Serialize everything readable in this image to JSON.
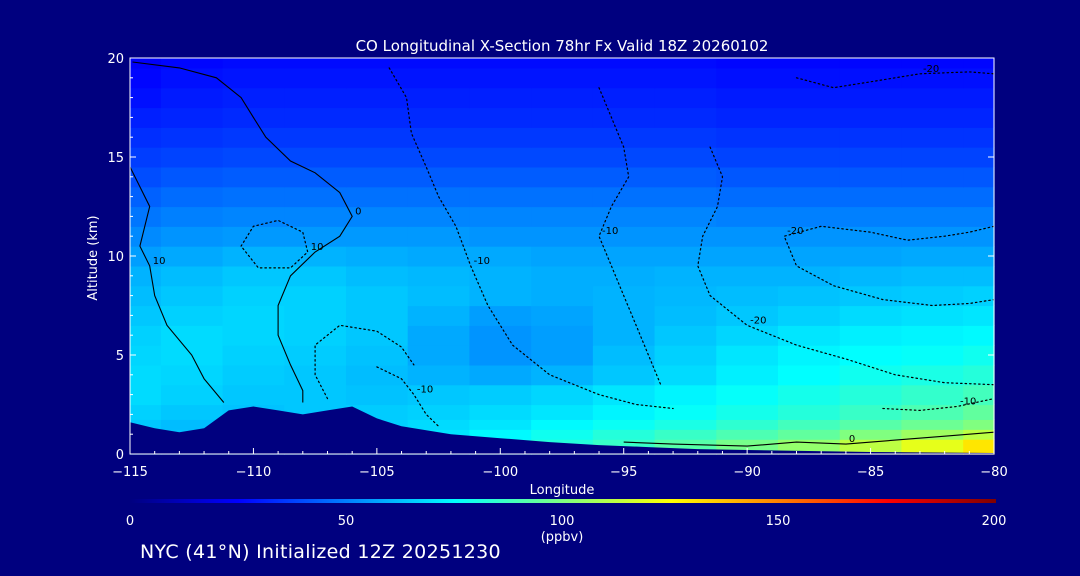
{
  "chart_data": {
    "type": "heatmap",
    "title": "CO Longitudinal X-Section 78hr  Fx Valid 18Z 20260102",
    "xlabel": "Longitude",
    "ylabel": "Altitude (km)",
    "xlim": [
      -115,
      -80
    ],
    "ylim": [
      0,
      20
    ],
    "x_ticks": [
      -115,
      -110,
      -105,
      -100,
      -95,
      -90,
      -85,
      -80
    ],
    "x_tick_labels": [
      "−115",
      "−110",
      "−105",
      "−100",
      "−95",
      "−90",
      "−85",
      "−80"
    ],
    "y_ticks": [
      0,
      5,
      10,
      15,
      20
    ],
    "y_tick_labels": [
      "0",
      "5",
      "10",
      "15",
      "20"
    ],
    "colorbar": {
      "min": 0,
      "max": 200,
      "ticks": [
        0,
        50,
        100,
        150,
        200
      ],
      "tick_labels": [
        "0",
        "50",
        "100",
        "150",
        "200"
      ],
      "unit_label": "(ppbv)",
      "colors": [
        "#00007f",
        "#0000ff",
        "#0080ff",
        "#00ffff",
        "#80ff80",
        "#ffff00",
        "#ff8000",
        "#ff0000",
        "#7f0000"
      ]
    },
    "altitude_levels_km": [
      0.5,
      1,
      1.5,
      2,
      3,
      4,
      5,
      6,
      7,
      8,
      9,
      10,
      11,
      12,
      13,
      14,
      15,
      16,
      17,
      18,
      19,
      20
    ],
    "longitudes": [
      -115,
      -112.5,
      -110,
      -107.5,
      -105,
      -102.5,
      -100,
      -97.5,
      -95,
      -92.5,
      -90,
      -87.5,
      -85,
      -82.5,
      -80
    ],
    "co_ppbv_rows": [
      [
        62,
        64,
        66,
        68,
        70,
        74,
        78,
        82,
        86,
        92,
        98,
        104,
        112,
        120,
        130
      ],
      [
        62,
        63,
        65,
        66,
        68,
        70,
        74,
        78,
        82,
        86,
        90,
        94,
        100,
        106,
        112
      ],
      [
        64,
        62,
        64,
        65,
        66,
        68,
        70,
        74,
        77,
        80,
        84,
        88,
        92,
        96,
        100
      ],
      [
        66,
        64,
        63,
        64,
        65,
        66,
        68,
        70,
        73,
        76,
        79,
        82,
        86,
        90,
        94
      ],
      [
        68,
        66,
        64,
        64,
        63,
        64,
        65,
        67,
        70,
        73,
        76,
        79,
        82,
        85,
        88
      ],
      [
        68,
        67,
        65,
        64,
        62,
        60,
        58,
        60,
        64,
        68,
        72,
        75,
        78,
        80,
        82
      ],
      [
        67,
        68,
        66,
        65,
        63,
        58,
        54,
        56,
        62,
        66,
        70,
        73,
        75,
        76,
        78
      ],
      [
        66,
        68,
        67,
        66,
        64,
        58,
        54,
        56,
        60,
        64,
        67,
        70,
        72,
        73,
        74
      ],
      [
        64,
        66,
        67,
        66,
        64,
        60,
        56,
        57,
        60,
        62,
        64,
        66,
        68,
        69,
        70
      ],
      [
        62,
        64,
        66,
        66,
        64,
        62,
        60,
        59,
        60,
        61,
        62,
        63,
        64,
        65,
        66
      ],
      [
        60,
        62,
        64,
        64,
        62,
        61,
        60,
        59,
        59,
        60,
        60,
        60,
        61,
        62,
        62
      ],
      [
        56,
        58,
        60,
        60,
        59,
        58,
        58,
        57,
        57,
        57,
        57,
        57,
        57,
        58,
        58
      ],
      [
        52,
        54,
        55,
        55,
        55,
        55,
        54,
        54,
        54,
        54,
        54,
        54,
        54,
        54,
        54
      ],
      [
        48,
        50,
        51,
        51,
        51,
        51,
        51,
        51,
        51,
        51,
        50,
        50,
        50,
        50,
        50
      ],
      [
        44,
        46,
        47,
        47,
        47,
        47,
        47,
        47,
        47,
        47,
        46,
        46,
        46,
        46,
        46
      ],
      [
        40,
        42,
        43,
        43,
        43,
        43,
        43,
        43,
        43,
        43,
        42,
        42,
        42,
        42,
        42
      ],
      [
        37,
        38,
        39,
        39,
        39,
        39,
        39,
        39,
        39,
        39,
        38,
        38,
        38,
        38,
        38
      ],
      [
        34,
        35,
        36,
        36,
        36,
        36,
        36,
        36,
        36,
        36,
        35,
        35,
        35,
        35,
        35
      ],
      [
        31,
        32,
        33,
        33,
        33,
        33,
        33,
        33,
        33,
        33,
        32,
        32,
        32,
        32,
        32
      ],
      [
        28,
        30,
        31,
        31,
        31,
        31,
        31,
        31,
        31,
        31,
        30,
        30,
        30,
        30,
        30
      ],
      [
        26,
        28,
        29,
        29,
        29,
        29,
        29,
        29,
        29,
        29,
        28,
        28,
        28,
        28,
        28
      ],
      [
        24,
        26,
        27,
        27,
        27,
        27,
        27,
        27,
        27,
        27,
        26,
        26,
        26,
        26,
        26
      ]
    ],
    "terrain_km": [
      [
        -115,
        1.6
      ],
      [
        -114,
        1.3
      ],
      [
        -113,
        1.1
      ],
      [
        -112,
        1.3
      ],
      [
        -111,
        2.2
      ],
      [
        -110,
        2.4
      ],
      [
        -109,
        2.2
      ],
      [
        -108,
        2.0
      ],
      [
        -107,
        2.2
      ],
      [
        -106,
        2.4
      ],
      [
        -105,
        1.8
      ],
      [
        -104,
        1.4
      ],
      [
        -102,
        1.0
      ],
      [
        -100,
        0.8
      ],
      [
        -98,
        0.6
      ],
      [
        -96,
        0.45
      ],
      [
        -94,
        0.35
      ],
      [
        -92,
        0.25
      ],
      [
        -90,
        0.2
      ],
      [
        -85,
        0.1
      ],
      [
        -80,
        0.05
      ]
    ],
    "contours": [
      {
        "style": "solid",
        "label": "0",
        "points": [
          [
            -114.9,
            19.8
          ],
          [
            -113,
            19.5
          ],
          [
            -111.5,
            19
          ],
          [
            -110.5,
            18
          ],
          [
            -110,
            17
          ],
          [
            -109.5,
            16
          ],
          [
            -108.5,
            14.8
          ],
          [
            -107.5,
            14.2
          ],
          [
            -106.5,
            13.2
          ],
          [
            -106,
            12
          ],
          [
            -106.5,
            11
          ],
          [
            -107.5,
            10.2
          ],
          [
            -108.5,
            9
          ],
          [
            -109,
            7.5
          ],
          [
            -109,
            6
          ],
          [
            -108.5,
            4.5
          ],
          [
            -108,
            3.2
          ],
          [
            -108,
            2.6
          ]
        ]
      },
      {
        "style": "solid",
        "label": "10",
        "points": [
          [
            -115,
            14.5
          ],
          [
            -114.6,
            13.5
          ],
          [
            -114.2,
            12.5
          ],
          [
            -114.4,
            11.5
          ],
          [
            -114.6,
            10.5
          ],
          [
            -114.2,
            9.5
          ],
          [
            -114,
            8
          ],
          [
            -113.5,
            6.5
          ],
          [
            -112.5,
            5
          ],
          [
            -112,
            3.8
          ],
          [
            -111.2,
            2.6
          ]
        ]
      },
      {
        "style": "solid",
        "label": "0",
        "points": [
          [
            -95,
            0.6
          ],
          [
            -93,
            0.5
          ],
          [
            -90,
            0.4
          ],
          [
            -88,
            0.6
          ],
          [
            -86,
            0.5
          ],
          [
            -84,
            0.7
          ],
          [
            -82,
            0.9
          ],
          [
            -80,
            1.1
          ]
        ]
      },
      {
        "style": "dotted",
        "label": "10",
        "points": [
          [
            -110.5,
            10.5
          ],
          [
            -110,
            11.5
          ],
          [
            -109,
            11.8
          ],
          [
            -108,
            11.2
          ],
          [
            -107.8,
            10.2
          ],
          [
            -108.5,
            9.4
          ],
          [
            -109.8,
            9.4
          ],
          [
            -110.5,
            10.5
          ]
        ]
      },
      {
        "style": "dotted",
        "label": "-10",
        "points": [
          [
            -104.5,
            19.5
          ],
          [
            -103.8,
            18
          ],
          [
            -103.6,
            16.2
          ],
          [
            -103,
            14.5
          ],
          [
            -102.5,
            13
          ],
          [
            -101.8,
            11.5
          ],
          [
            -101.2,
            9.5
          ],
          [
            -100.5,
            7.5
          ],
          [
            -99.5,
            5.5
          ],
          [
            -98,
            4
          ],
          [
            -96,
            3
          ],
          [
            -94.5,
            2.5
          ],
          [
            -93,
            2.3
          ]
        ]
      },
      {
        "style": "dotted",
        "label": "-10",
        "points": [
          [
            -96,
            18.5
          ],
          [
            -95.5,
            17
          ],
          [
            -95,
            15.5
          ],
          [
            -94.8,
            14
          ],
          [
            -95.5,
            12.5
          ],
          [
            -96,
            11
          ],
          [
            -95.5,
            9.5
          ],
          [
            -95,
            8
          ],
          [
            -94.5,
            6.5
          ],
          [
            -94,
            5
          ],
          [
            -93.5,
            3.5
          ]
        ]
      },
      {
        "style": "dotted",
        "label": "-20",
        "points": [
          [
            -91.5,
            15.5
          ],
          [
            -91,
            14
          ],
          [
            -91.2,
            12.5
          ],
          [
            -91.8,
            11
          ],
          [
            -92,
            9.5
          ],
          [
            -91.5,
            8
          ],
          [
            -90,
            6.5
          ],
          [
            -88,
            5.5
          ],
          [
            -86,
            4.8
          ],
          [
            -84,
            4
          ],
          [
            -82,
            3.6
          ],
          [
            -80,
            3.5
          ]
        ]
      },
      {
        "style": "dotted",
        "label": "-20",
        "points": [
          [
            -88,
            19
          ],
          [
            -86.5,
            18.5
          ],
          [
            -85,
            18.8
          ],
          [
            -83,
            19.2
          ],
          [
            -81,
            19.3
          ],
          [
            -80,
            19.2
          ]
        ]
      },
      {
        "style": "dotted",
        "label": "-20",
        "points": [
          [
            -80,
            11.5
          ],
          [
            -81,
            11.2
          ],
          [
            -82,
            11
          ],
          [
            -83.5,
            10.8
          ],
          [
            -85,
            11.2
          ],
          [
            -87,
            11.5
          ],
          [
            -88.5,
            11
          ],
          [
            -88,
            9.5
          ],
          [
            -86.5,
            8.5
          ],
          [
            -84.5,
            7.8
          ],
          [
            -82.5,
            7.5
          ],
          [
            -81,
            7.6
          ],
          [
            -80,
            7.8
          ]
        ]
      },
      {
        "style": "dotted",
        "label": "-10",
        "points": [
          [
            -105,
            4.4
          ],
          [
            -104,
            3.8
          ],
          [
            -103.5,
            3.0
          ],
          [
            -103,
            2.0
          ],
          [
            -102.5,
            1.4
          ]
        ]
      },
      {
        "style": "dotted",
        "label": "-10",
        "points": [
          [
            -84.5,
            2.3
          ],
          [
            -83,
            2.2
          ],
          [
            -81.5,
            2.4
          ],
          [
            -80,
            2.8
          ]
        ]
      },
      {
        "style": "dotted",
        "label": "",
        "points": [
          [
            -107,
            2.8
          ],
          [
            -107.5,
            4
          ],
          [
            -107.5,
            5.5
          ],
          [
            -106.5,
            6.5
          ],
          [
            -105,
            6.2
          ],
          [
            -104,
            5.4
          ],
          [
            -103.5,
            4.5
          ]
        ]
      }
    ]
  },
  "footer": {
    "text": "NYC (41°N) Initialized 12Z 20251230"
  }
}
